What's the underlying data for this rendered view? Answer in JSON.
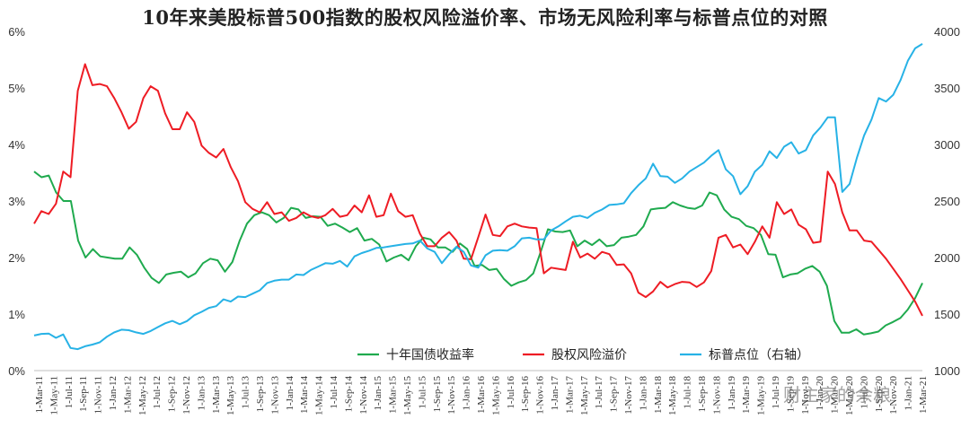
{
  "title": "10年来美股标普500指数的股权风险溢价率、市场无风险利率与标普点位的对照",
  "watermark": "财主家的余粮",
  "colors": {
    "treasury": "#1faa4e",
    "erp": "#ee1c24",
    "sp500": "#27b2e6",
    "axis": "#bfbfbf",
    "text": "#333333"
  },
  "chart_data": {
    "type": "line",
    "title": "10年来美股标普500指数的股权风险溢价率、市场无风险利率与标普点位的对照",
    "y_left": {
      "ticks": [
        "0%",
        "1%",
        "2%",
        "3%",
        "4%",
        "5%",
        "6%"
      ],
      "range": [
        0,
        6
      ]
    },
    "y_right": {
      "ticks": [
        "1000",
        "1500",
        "2000",
        "2500",
        "3000",
        "3500",
        "4000"
      ],
      "range": [
        1000,
        4000
      ]
    },
    "legend": {
      "position": "bottom-right"
    },
    "x_labels": [
      "1-Mar-11",
      "1-May-11",
      "1-Jul-11",
      "1-Sep-11",
      "1-Nov-11",
      "1-Jan-12",
      "1-Mar-12",
      "1-May-12",
      "1-Jul-12",
      "1-Sep-12",
      "1-Nov-12",
      "1-Jan-13",
      "1-Mar-13",
      "1-May-13",
      "1-Jul-13",
      "1-Sep-13",
      "1-Nov-13",
      "1-Jan-14",
      "1-Mar-14",
      "1-May-14",
      "1-Jul-14",
      "1-Sep-14",
      "1-Nov-14",
      "1-Jan-15",
      "1-Mar-15",
      "1-May-15",
      "1-Jul-15",
      "1-Sep-15",
      "1-Nov-15",
      "1-Jan-16",
      "1-Mar-16",
      "1-May-16",
      "1-Jul-16",
      "1-Sep-16",
      "1-Nov-16",
      "1-Jan-17",
      "1-Mar-17",
      "1-May-17",
      "1-Jul-17",
      "1-Sep-17",
      "1-Nov-17",
      "1-Jan-18",
      "1-Mar-18",
      "1-May-18",
      "1-Jul-18",
      "1-Sep-18",
      "1-Nov-18",
      "1-Jan-19",
      "1-Mar-19",
      "1-May-19",
      "1-Jul-19",
      "1-Sep-19",
      "1-Nov-19",
      "1-Jan-20",
      "1-Mar-20",
      "1-May-20",
      "1-Jul-20",
      "1-Sep-20",
      "1-Nov-20",
      "1-Jan-21",
      "1-Mar-21"
    ],
    "series": [
      {
        "name": "十年国债收益率",
        "axis": "left",
        "values": [
          3.52,
          3.42,
          3.45,
          3.15,
          3.0,
          3.0,
          2.3,
          2.0,
          2.15,
          2.02,
          2.0,
          1.98,
          1.98,
          2.18,
          2.05,
          1.82,
          1.64,
          1.55,
          1.7,
          1.73,
          1.75,
          1.65,
          1.72,
          1.9,
          1.98,
          1.95,
          1.75,
          1.92,
          2.3,
          2.6,
          2.75,
          2.8,
          2.75,
          2.62,
          2.7,
          2.88,
          2.85,
          2.7,
          2.73,
          2.72,
          2.56,
          2.6,
          2.53,
          2.45,
          2.52,
          2.3,
          2.33,
          2.23,
          1.93,
          2.0,
          2.05,
          1.95,
          2.2,
          2.35,
          2.32,
          2.18,
          2.18,
          2.1,
          2.25,
          2.15,
          1.85,
          1.87,
          1.78,
          1.8,
          1.62,
          1.5,
          1.56,
          1.6,
          1.72,
          2.1,
          2.5,
          2.46,
          2.45,
          2.48,
          2.2,
          2.3,
          2.22,
          2.32,
          2.2,
          2.22,
          2.35,
          2.37,
          2.4,
          2.55,
          2.85,
          2.87,
          2.88,
          2.98,
          2.92,
          2.88,
          2.86,
          2.92,
          3.15,
          3.1,
          2.85,
          2.72,
          2.68,
          2.56,
          2.52,
          2.4,
          2.06,
          2.05,
          1.65,
          1.7,
          1.72,
          1.8,
          1.85,
          1.75,
          1.5,
          0.88,
          0.67,
          0.67,
          0.73,
          0.64,
          0.66,
          0.69,
          0.8,
          0.86,
          0.93,
          1.08,
          1.28,
          1.55
        ]
      },
      {
        "name": "股权风险溢价",
        "axis": "left",
        "values": [
          2.6,
          2.82,
          2.77,
          2.95,
          3.52,
          3.42,
          4.95,
          5.42,
          5.05,
          5.07,
          5.03,
          4.82,
          4.57,
          4.28,
          4.4,
          4.82,
          5.03,
          4.95,
          4.55,
          4.27,
          4.27,
          4.57,
          4.4,
          3.98,
          3.85,
          3.77,
          3.92,
          3.6,
          3.35,
          2.98,
          2.86,
          2.8,
          2.98,
          2.77,
          2.8,
          2.65,
          2.7,
          2.8,
          2.73,
          2.7,
          2.75,
          2.86,
          2.72,
          2.75,
          2.92,
          2.8,
          3.1,
          2.72,
          2.75,
          3.13,
          2.82,
          2.72,
          2.75,
          2.42,
          2.2,
          2.2,
          2.35,
          2.45,
          2.3,
          1.98,
          1.97,
          2.36,
          2.76,
          2.4,
          2.38,
          2.55,
          2.6,
          2.55,
          2.53,
          2.52,
          1.72,
          1.82,
          1.8,
          1.78,
          2.28,
          2.0,
          2.07,
          1.98,
          2.1,
          2.06,
          1.87,
          1.88,
          1.72,
          1.38,
          1.3,
          1.4,
          1.57,
          1.47,
          1.53,
          1.57,
          1.56,
          1.48,
          1.56,
          1.76,
          2.35,
          2.4,
          2.18,
          2.23,
          2.06,
          2.28,
          2.55,
          2.35,
          2.98,
          2.77,
          2.85,
          2.58,
          2.5,
          2.26,
          2.28,
          3.52,
          3.3,
          2.8,
          2.48,
          2.48,
          2.3,
          2.28,
          2.13,
          1.98,
          1.8,
          1.62,
          1.42,
          1.22,
          0.97
        ]
      },
      {
        "name": "标普点位（右轴）",
        "axis": "right",
        "values": [
          1310,
          1325,
          1328,
          1290,
          1320,
          1200,
          1190,
          1215,
          1230,
          1250,
          1300,
          1338,
          1362,
          1357,
          1338,
          1325,
          1350,
          1385,
          1418,
          1440,
          1410,
          1438,
          1490,
          1520,
          1555,
          1570,
          1630,
          1610,
          1655,
          1650,
          1680,
          1710,
          1775,
          1795,
          1805,
          1805,
          1850,
          1845,
          1890,
          1920,
          1950,
          1945,
          1970,
          1920,
          2010,
          2040,
          2060,
          2085,
          2090,
          2100,
          2110,
          2120,
          2125,
          2150,
          2080,
          2050,
          1950,
          2030,
          2095,
          2050,
          1930,
          1910,
          2020,
          2060,
          2065,
          2060,
          2100,
          2170,
          2175,
          2160,
          2160,
          2240,
          2275,
          2320,
          2360,
          2370,
          2350,
          2395,
          2425,
          2465,
          2470,
          2480,
          2570,
          2640,
          2700,
          2830,
          2720,
          2715,
          2660,
          2700,
          2760,
          2800,
          2840,
          2900,
          2950,
          2780,
          2720,
          2560,
          2630,
          2760,
          2820,
          2940,
          2880,
          2980,
          3020,
          2920,
          2950,
          3080,
          3150,
          3240,
          3240,
          2580,
          2650,
          2880,
          3080,
          3220,
          3410,
          3380,
          3440,
          3570,
          3740,
          3850,
          3890
        ]
      }
    ]
  }
}
